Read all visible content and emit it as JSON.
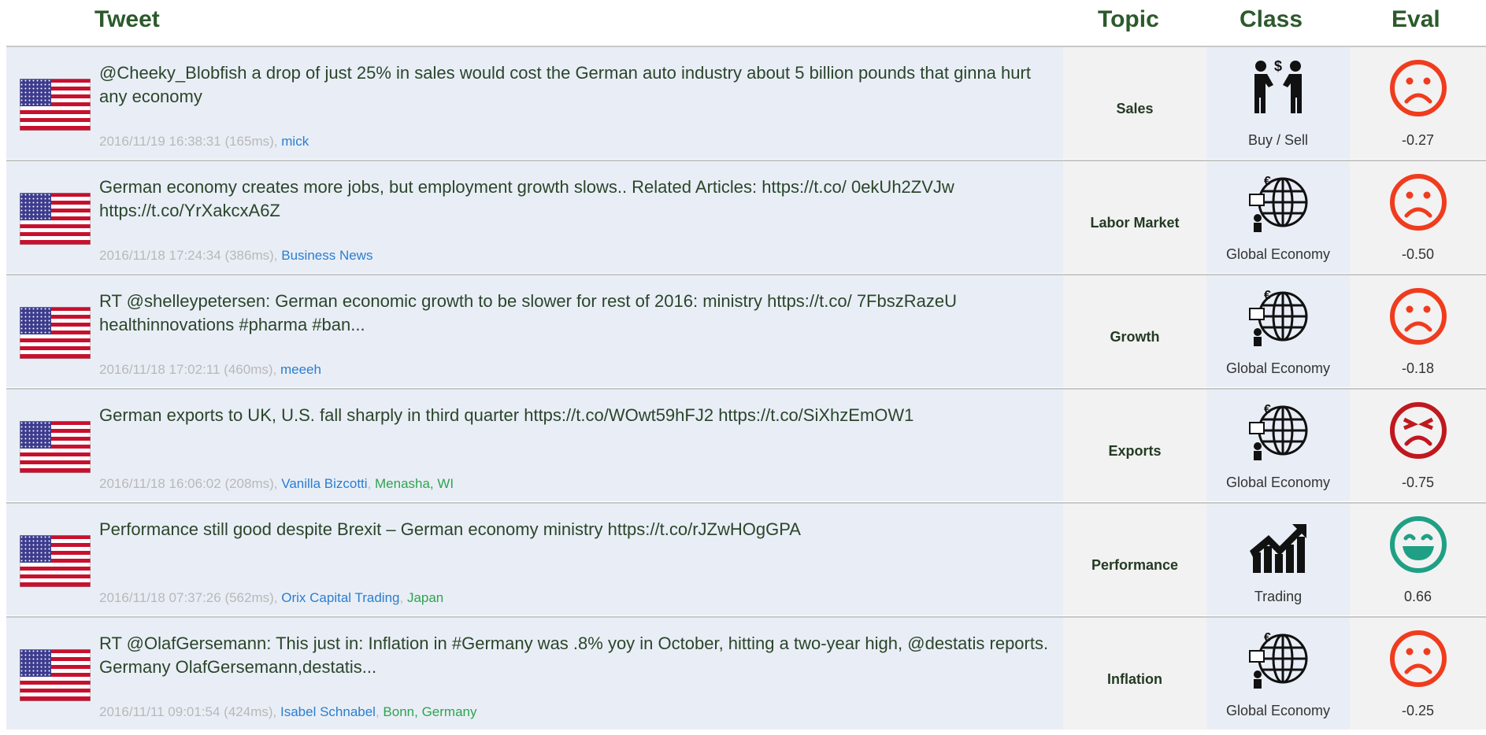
{
  "header": {
    "tweet": "Tweet",
    "topic": "Topic",
    "class": "Class",
    "eval": "Eval"
  },
  "rows": [
    {
      "text": "@Cheeky_Blobfish a drop of just 25% in sales would cost the German auto industry about 5 billion pounds that ginna hurt any economy",
      "meta": "2016/11/19 16:38:31 (165ms)",
      "user": "mick",
      "topic": "Sales",
      "class": "Buy / Sell",
      "eval": "-0.27"
    },
    {
      "text": "German economy creates more jobs, but employment growth slows.. Related Articles: https://t.co/ 0ekUh2ZVJw https://t.co/YrXakcxA6Z",
      "meta": "2016/11/18 17:24:34 (386ms)",
      "user": "Business News",
      "topic": "Labor Market",
      "class": "Global Economy",
      "eval": "-0.50"
    },
    {
      "text": "RT @shelleypetersen: German economic growth to be slower for rest of 2016: ministry https://t.co/ 7FbszRazeU healthinnovations #pharma #ban...",
      "meta": "2016/11/18 17:02:11 (460ms)",
      "user": "meeeh",
      "topic": "Growth",
      "class": "Global Economy",
      "eval": "-0.18"
    },
    {
      "text": "German exports to UK, U.S. fall sharply in third quarter https://t.co/WOwt59hFJ2 https://t.co/SiXhzEmOW1",
      "meta": "2016/11/18 16:06:02 (208ms)",
      "user": "Vanilla Bizcotti",
      "location": "Menasha, WI",
      "topic": "Exports",
      "class": "Global Economy",
      "eval": "-0.75"
    },
    {
      "text": "Performance still good despite Brexit – German economy ministry https://t.co/rJZwHOgGPA",
      "meta": "2016/11/18 07:37:26 (562ms)",
      "user": "Orix Capital Trading",
      "location": "Japan",
      "topic": "Performance",
      "class": "Trading",
      "eval": "0.66"
    },
    {
      "text": "RT @OlafGersemann: This just in: Inflation in #Germany was .8% yoy in October, hitting a two-year high, @destatis reports. Germany OlafGersemann,destatis...",
      "meta": "2016/11/11 09:01:54 (424ms)",
      "user": "Isabel Schnabel",
      "location": "Bonn, Germany",
      "topic": "Inflation",
      "class": "Global Economy",
      "eval": "-0.25"
    }
  ]
}
